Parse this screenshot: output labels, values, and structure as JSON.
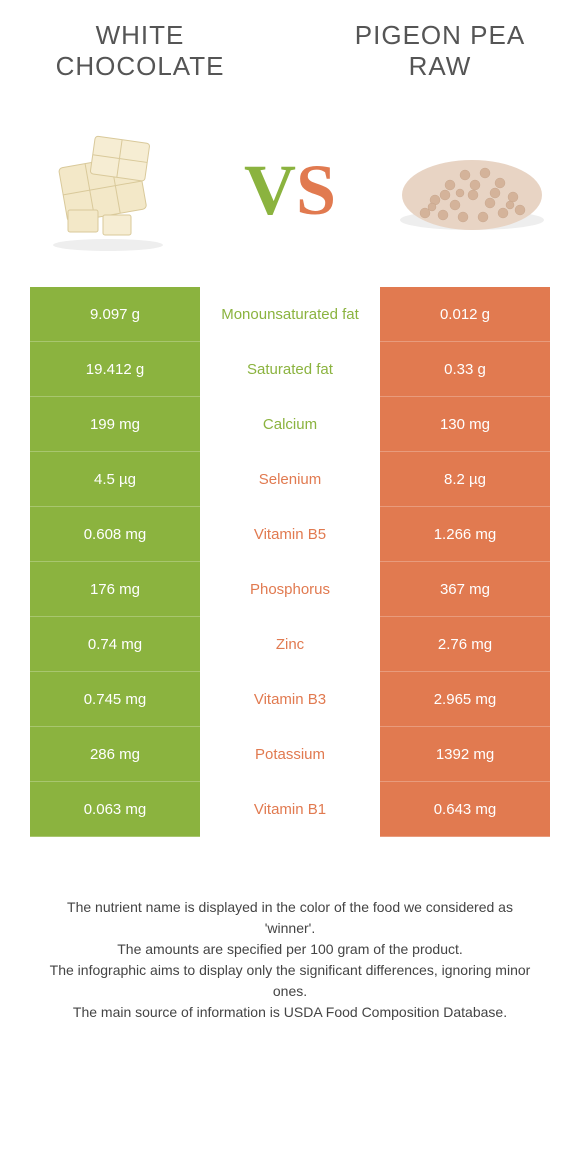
{
  "header": {
    "left": "WHITE CHOCOLATE",
    "right": "PIGEON PEA RAW"
  },
  "colors": {
    "green": "#8bb33f",
    "orange": "#e17a50"
  },
  "vs": {
    "v": "V",
    "s": "S"
  },
  "rows": [
    {
      "left": "9.097 g",
      "label": "Monounsaturated fat",
      "right": "0.012 g",
      "labelColor": "green"
    },
    {
      "left": "19.412 g",
      "label": "Saturated fat",
      "right": "0.33 g",
      "labelColor": "green"
    },
    {
      "left": "199 mg",
      "label": "Calcium",
      "right": "130 mg",
      "labelColor": "green"
    },
    {
      "left": "4.5 µg",
      "label": "Selenium",
      "right": "8.2 µg",
      "labelColor": "orange"
    },
    {
      "left": "0.608 mg",
      "label": "Vitamin B5",
      "right": "1.266 mg",
      "labelColor": "orange"
    },
    {
      "left": "176 mg",
      "label": "Phosphorus",
      "right": "367 mg",
      "labelColor": "orange"
    },
    {
      "left": "0.74 mg",
      "label": "Zinc",
      "right": "2.76 mg",
      "labelColor": "orange"
    },
    {
      "left": "0.745 mg",
      "label": "Vitamin B3",
      "right": "2.965 mg",
      "labelColor": "orange"
    },
    {
      "left": "286 mg",
      "label": "Potassium",
      "right": "1392 mg",
      "labelColor": "orange"
    },
    {
      "left": "0.063 mg",
      "label": "Vitamin B1",
      "right": "0.643 mg",
      "labelColor": "orange"
    }
  ],
  "footer": {
    "line1": "The nutrient name is displayed in the color of the food we considered as 'winner'.",
    "line2": "The amounts are specified per 100 gram of the product.",
    "line3": "The infographic aims to display only the significant differences, ignoring minor ones.",
    "line4": "The main source of information is USDA Food Composition Database."
  }
}
